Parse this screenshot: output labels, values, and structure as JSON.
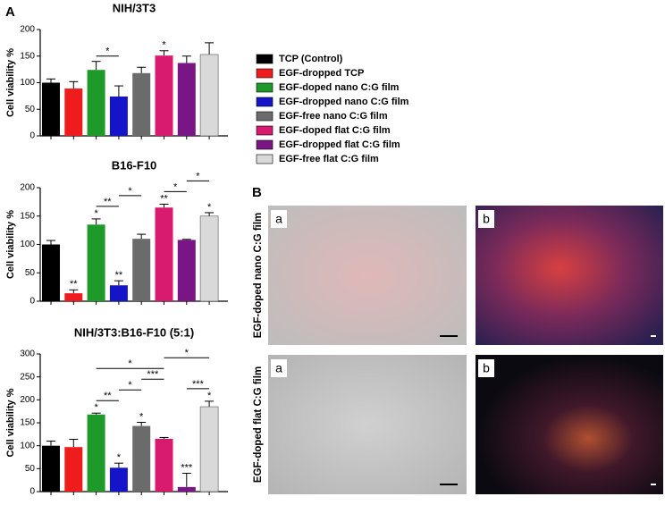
{
  "panels": [
    "A",
    "B"
  ],
  "legend": {
    "names": [
      "TCP (Control)",
      "EGF-dropped TCP",
      "EGF-doped nano C:G film",
      "EGF-dropped nano C:G film",
      "EGF-free nano C:G film",
      "EGF-doped flat C:G film",
      "EGF-dropped flat C:G film",
      "EGF-free flat C:G film"
    ],
    "colors": [
      "#000000",
      "#ee1c1c",
      "#1e9a2a",
      "#1414c8",
      "#6b6b6b",
      "#d81b6e",
      "#7a1585",
      "#d9d9d9"
    ]
  },
  "chart_data": [
    {
      "type": "bar",
      "title": "NIH/3T3",
      "ylabel": "Cell viability %",
      "values": [
        100,
        89,
        124,
        74,
        118,
        151,
        137,
        153
      ],
      "errors": [
        7,
        13,
        16,
        20,
        11,
        9,
        13,
        22
      ],
      "bar_labels": [
        null,
        null,
        null,
        null,
        null,
        "*",
        null,
        null
      ],
      "brackets": [
        {
          "label": "*",
          "from": 2,
          "to": 3
        }
      ],
      "ylim": [
        0,
        200
      ],
      "yticks": [
        0,
        50,
        100,
        150,
        200
      ]
    },
    {
      "type": "bar",
      "title": "B16-F10",
      "ylabel": "Cell viability %",
      "values": [
        100,
        14,
        135,
        28,
        110,
        165,
        108,
        150
      ],
      "errors": [
        7,
        6,
        10,
        8,
        8,
        6,
        1,
        6
      ],
      "bar_labels": [
        null,
        "**",
        "*",
        "**",
        null,
        "**",
        null,
        "*"
      ],
      "brackets": [
        {
          "label": "**",
          "from": 2,
          "to": 3
        },
        {
          "label": "*",
          "from": 3,
          "to": 4
        },
        {
          "label": "*",
          "from": 5,
          "to": 6
        },
        {
          "label": "*",
          "from": 6,
          "to": 7
        }
      ],
      "ylim": [
        0,
        200
      ],
      "yticks": [
        0,
        50,
        100,
        150,
        200
      ]
    },
    {
      "type": "bar",
      "title": "NIH/3T3:B16-F10 (5:1)",
      "ylabel": "Cell viability %",
      "values": [
        100,
        97,
        168,
        52,
        143,
        115,
        10,
        185
      ],
      "errors": [
        10,
        17,
        3,
        10,
        8,
        3,
        30,
        12
      ],
      "bar_labels": [
        null,
        null,
        "*",
        "*",
        "*",
        null,
        "***",
        "*"
      ],
      "brackets": [
        {
          "label": "**",
          "from": 2,
          "to": 3
        },
        {
          "label": "*",
          "from": 3,
          "to": 4
        },
        {
          "label": "***",
          "from": 4,
          "to": 5
        },
        {
          "label": "*",
          "from": 2,
          "to": 5
        },
        {
          "label": "***",
          "from": 6,
          "to": 7
        },
        {
          "label": "*",
          "from": 5,
          "to": 7
        }
      ],
      "ylim": [
        0,
        300
      ],
      "yticks": [
        0,
        50,
        100,
        150,
        200,
        250,
        300
      ]
    }
  ],
  "images": {
    "rows": [
      "EGF-doped nano C:G film",
      "EGF-doped flat C:G film"
    ],
    "labels": [
      "a",
      "b"
    ]
  }
}
